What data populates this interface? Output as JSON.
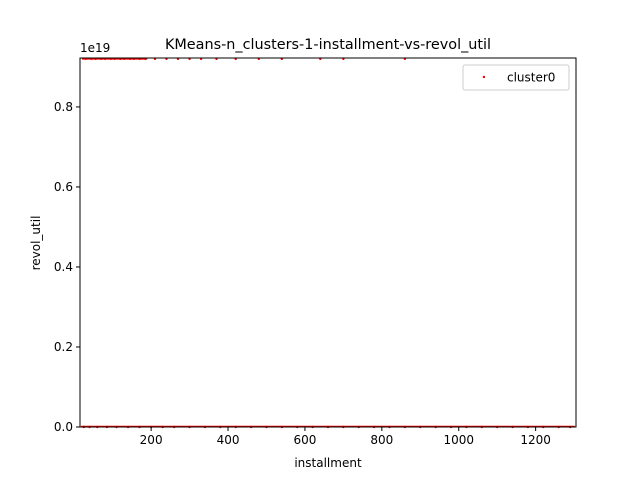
{
  "chart_data": {
    "type": "scatter",
    "title": "KMeans-n_clusters-1-installment-vs-revol_util",
    "xlabel": "installment",
    "ylabel": "revol_util",
    "y_offset_label": "1e19",
    "xlim": [
      15,
      1305
    ],
    "ylim": [
      0,
      0.9223
    ],
    "x_ticks": [
      200,
      400,
      600,
      800,
      1000,
      1200
    ],
    "x_tick_labels": [
      "200",
      "400",
      "600",
      "800",
      "1000",
      "1200"
    ],
    "y_ticks": [
      0.0,
      0.2,
      0.4,
      0.6,
      0.8
    ],
    "y_tick_labels": [
      "0.0",
      "0.2",
      "0.4",
      "0.6",
      "0.8"
    ],
    "grid": false,
    "legend_position": "top-right",
    "series": [
      {
        "name": "cluster0",
        "color": "#ff0000",
        "points": [
          [
            25,
            0
          ],
          [
            40,
            0
          ],
          [
            60,
            0
          ],
          [
            85,
            0
          ],
          [
            110,
            0
          ],
          [
            140,
            0
          ],
          [
            170,
            0
          ],
          [
            200,
            0
          ],
          [
            230,
            0
          ],
          [
            260,
            0
          ],
          [
            300,
            0
          ],
          [
            340,
            0
          ],
          [
            380,
            0
          ],
          [
            420,
            0
          ],
          [
            460,
            0
          ],
          [
            500,
            0
          ],
          [
            540,
            0
          ],
          [
            580,
            0
          ],
          [
            620,
            0
          ],
          [
            660,
            0
          ],
          [
            700,
            0
          ],
          [
            740,
            0
          ],
          [
            780,
            0
          ],
          [
            820,
            0
          ],
          [
            860,
            0
          ],
          [
            900,
            0
          ],
          [
            940,
            0
          ],
          [
            980,
            0
          ],
          [
            1020,
            0
          ],
          [
            1060,
            0
          ],
          [
            1100,
            0
          ],
          [
            1140,
            0
          ],
          [
            1180,
            0
          ],
          [
            1220,
            0
          ],
          [
            1260,
            0
          ],
          [
            1290,
            0
          ],
          [
            30,
            0.92
          ],
          [
            45,
            0.92
          ],
          [
            55,
            0.92
          ],
          [
            70,
            0.92
          ],
          [
            80,
            0.92
          ],
          [
            95,
            0.92
          ],
          [
            105,
            0.92
          ],
          [
            120,
            0.92
          ],
          [
            130,
            0.92
          ],
          [
            145,
            0.92
          ],
          [
            155,
            0.92
          ],
          [
            170,
            0.92
          ],
          [
            185,
            0.92
          ],
          [
            210,
            0.92
          ],
          [
            240,
            0.92
          ],
          [
            270,
            0.92
          ],
          [
            300,
            0.92
          ],
          [
            330,
            0.92
          ],
          [
            370,
            0.92
          ],
          [
            420,
            0.92
          ],
          [
            480,
            0.92
          ],
          [
            540,
            0.92
          ],
          [
            640,
            0.92
          ],
          [
            700,
            0.92
          ],
          [
            860,
            0.92
          ]
        ]
      }
    ]
  }
}
